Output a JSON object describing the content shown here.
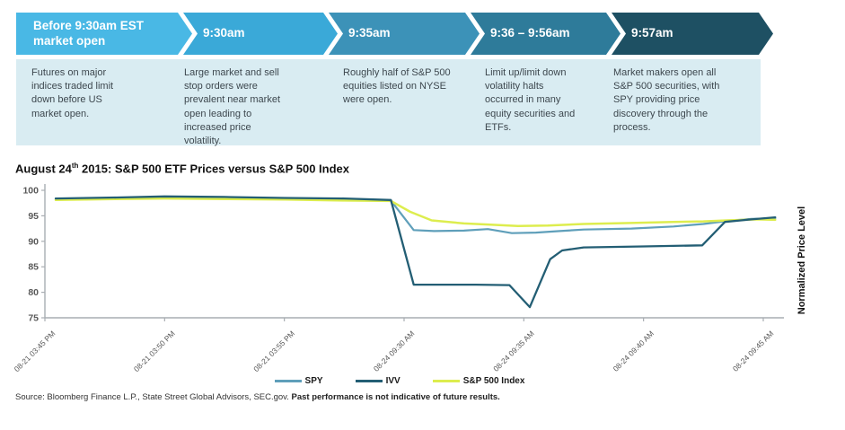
{
  "timeline": {
    "band_bg": "#d9ecf2",
    "steps": [
      {
        "label": "Before 9:30am EST market open",
        "color": "#49b8e5",
        "description": "Futures on major indices traded limit down before US market open."
      },
      {
        "label": "9:30am",
        "color": "#3aa9d8",
        "description": "Large market and sell stop orders were prevalent near market open leading to increased price volatility."
      },
      {
        "label": "9:35am",
        "color": "#3c92b8",
        "description": "Roughly half of S&P 500 equities listed on NYSE were open."
      },
      {
        "label": "9:36 – 9:56am",
        "color": "#2e7b9a",
        "description": "Limit up/limit down volatility halts occurred in many equity securities and ETFs."
      },
      {
        "label": "9:57am",
        "color": "#1e5063",
        "description": "Market makers open all S&P 500 securities, with SPY providing price discovery through the process."
      }
    ]
  },
  "chart": {
    "title_prefix": "August 24",
    "title_sup": "th",
    "title_rest": " 2015: S&P 500 ETF Prices versus S&P 500 Index",
    "right_axis_label": "Normalized Price Level"
  },
  "chart_data": {
    "type": "line",
    "title": "August 24th 2015: S&P 500 ETF Prices versus S&P 500 Index",
    "ylabel": "Normalized Price Level",
    "ylim": [
      75,
      100
    ],
    "yticks": [
      100,
      95,
      90,
      85,
      80,
      75
    ],
    "xticklabels": [
      "08-21 03:45 PM",
      "08-21 03:50 PM",
      "08-21 03:55 PM",
      "08-24 09:30 AM",
      "08-24 09:35 AM",
      "08-24 09:40 AM",
      "08-24 09:45 AM"
    ],
    "x_unit": "tick-index (0 = 08-21 03:45 PM, 6 = 08-24 09:45 AM)",
    "grid": false,
    "legend_position": "bottom",
    "series": [
      {
        "name": "SPY",
        "color": "#5f9fba",
        "points": [
          [
            0.09,
            98.3
          ],
          [
            0.6,
            98.5
          ],
          [
            1.0,
            98.6
          ],
          [
            1.5,
            98.5
          ],
          [
            2.0,
            98.4
          ],
          [
            2.5,
            98.2
          ],
          [
            2.89,
            98.0
          ],
          [
            3.08,
            92.2
          ],
          [
            3.25,
            92.0
          ],
          [
            3.5,
            92.1
          ],
          [
            3.7,
            92.4
          ],
          [
            3.9,
            91.6
          ],
          [
            4.1,
            91.7
          ],
          [
            4.3,
            92.0
          ],
          [
            4.5,
            92.3
          ],
          [
            4.9,
            92.5
          ],
          [
            5.25,
            92.9
          ],
          [
            5.5,
            93.4
          ],
          [
            5.7,
            94.0
          ],
          [
            5.9,
            94.4
          ],
          [
            6.1,
            94.5
          ]
        ]
      },
      {
        "name": "IVV",
        "color": "#235e74",
        "points": [
          [
            0.09,
            98.4
          ],
          [
            0.6,
            98.6
          ],
          [
            1.0,
            98.8
          ],
          [
            1.5,
            98.7
          ],
          [
            2.0,
            98.5
          ],
          [
            2.5,
            98.4
          ],
          [
            2.89,
            98.1
          ],
          [
            3.08,
            81.5
          ],
          [
            3.6,
            81.5
          ],
          [
            3.88,
            81.4
          ],
          [
            4.05,
            77.1
          ],
          [
            4.22,
            86.5
          ],
          [
            4.32,
            88.2
          ],
          [
            4.5,
            88.8
          ],
          [
            5.0,
            89.0
          ],
          [
            5.49,
            89.2
          ],
          [
            5.68,
            93.8
          ],
          [
            5.9,
            94.3
          ],
          [
            6.1,
            94.7
          ]
        ]
      },
      {
        "name": "S&P 500 Index",
        "color": "#dded4e",
        "points": [
          [
            0.09,
            98.1
          ],
          [
            0.6,
            98.3
          ],
          [
            1.0,
            98.4
          ],
          [
            1.5,
            98.3
          ],
          [
            2.0,
            98.2
          ],
          [
            2.5,
            98.0
          ],
          [
            2.89,
            97.9
          ],
          [
            3.05,
            95.8
          ],
          [
            3.23,
            94.1
          ],
          [
            3.5,
            93.5
          ],
          [
            3.7,
            93.3
          ],
          [
            3.95,
            93.0
          ],
          [
            4.2,
            93.1
          ],
          [
            4.5,
            93.4
          ],
          [
            4.9,
            93.6
          ],
          [
            5.25,
            93.8
          ],
          [
            5.5,
            93.9
          ],
          [
            5.7,
            94.1
          ],
          [
            5.95,
            94.3
          ],
          [
            6.1,
            94.2
          ]
        ]
      }
    ]
  },
  "source": {
    "normal": "Source: Bloomberg Finance L.P., State Street Global Advisors, SEC.gov. ",
    "bold": "Past performance is not indicative of future results."
  }
}
